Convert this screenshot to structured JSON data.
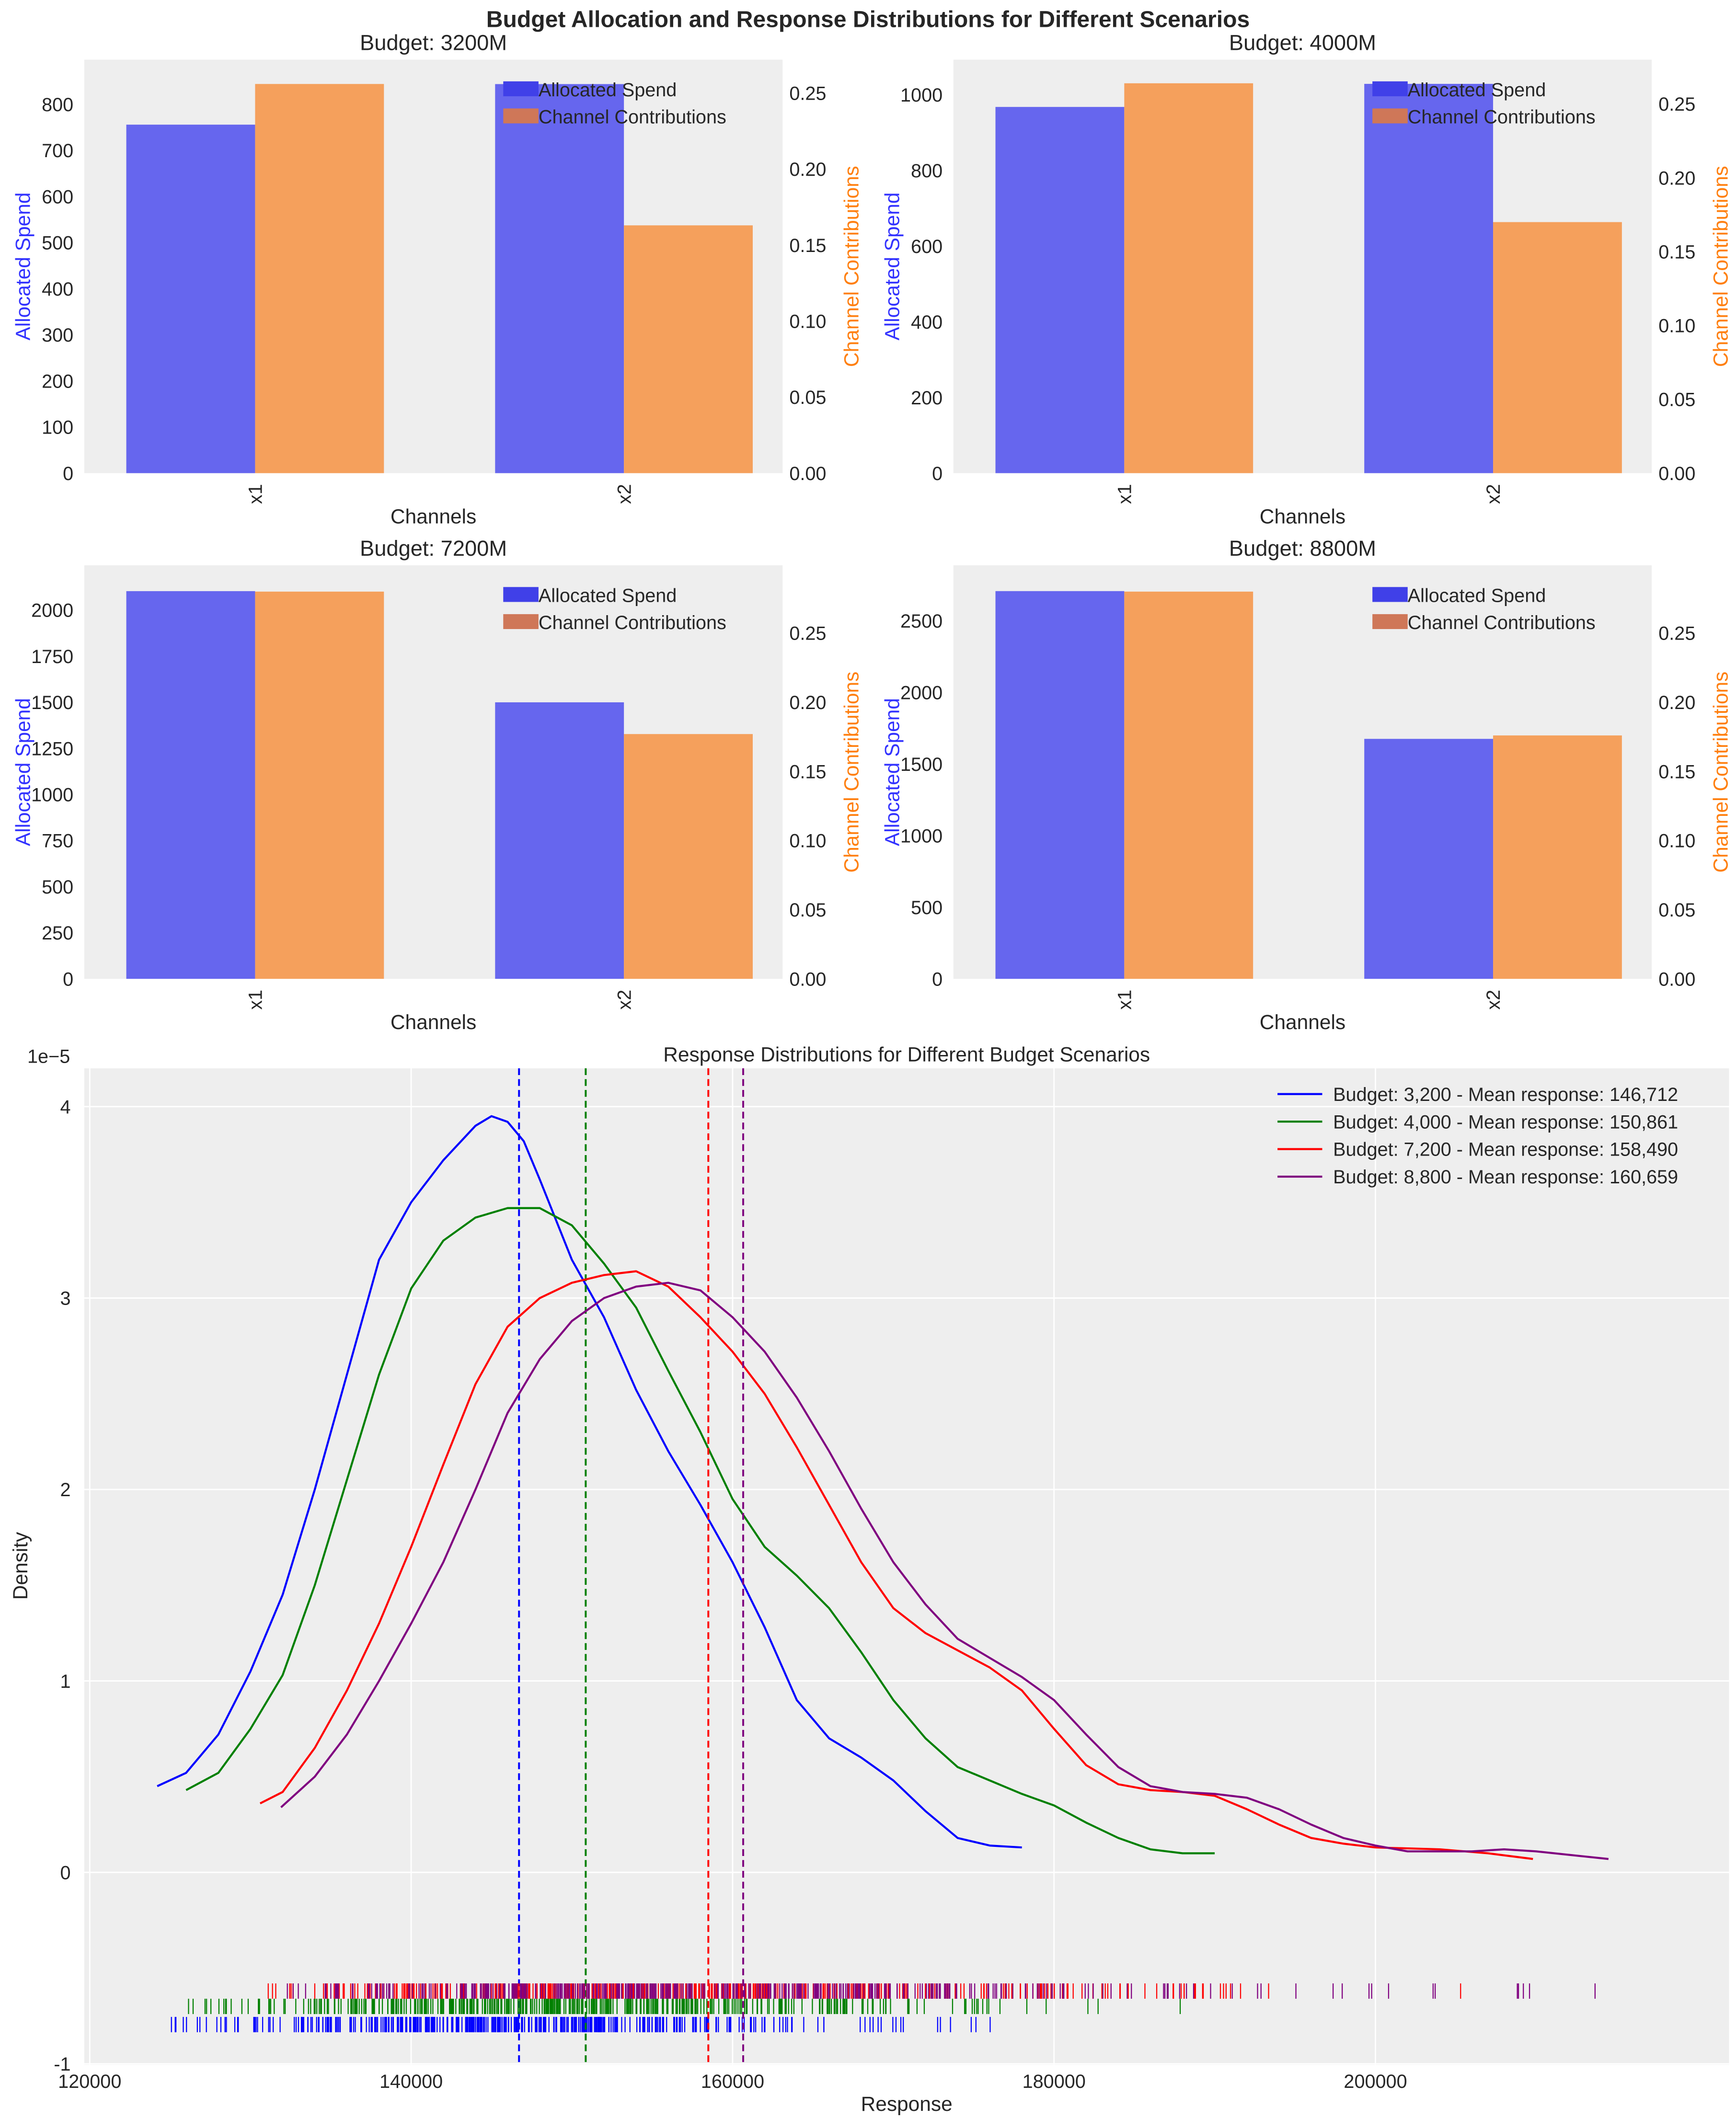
{
  "figure": {
    "title": "Budget Allocation and Response Distributions for Different Scenarios",
    "background": "#eeeeee",
    "spend_color": "#6666ee",
    "contribution_color": "#f5a05c",
    "spend_label_color": "#3333ff",
    "contribution_label_color": "#ff7f0e"
  },
  "chart_data": [
    {
      "type": "bar",
      "title": "Budget: 3200M",
      "xlabel": "Channels",
      "ylabel": "Allocated Spend",
      "ylabel_right": "Channel Contributions",
      "categories": [
        "x1",
        "x2"
      ],
      "series": [
        {
          "name": "Allocated Spend",
          "axis": "left",
          "values": [
            756,
            844
          ]
        },
        {
          "name": "Channel Contributions",
          "axis": "right",
          "values": [
            0.256,
            0.163
          ]
        }
      ],
      "ylim": [
        0,
        897
      ],
      "ylim_right": [
        0,
        0.272
      ],
      "yticks": [
        "0",
        "100",
        "200",
        "300",
        "400",
        "500",
        "600",
        "700",
        "800"
      ],
      "yticks_right": [
        "0.00",
        "0.05",
        "0.10",
        "0.15",
        "0.20",
        "0.25"
      ],
      "legend": "top-right",
      "grid": false
    },
    {
      "type": "bar",
      "title": "Budget: 4000M",
      "xlabel": "Channels",
      "ylabel": "Allocated Spend",
      "ylabel_right": "Channel Contributions",
      "categories": [
        "x1",
        "x2"
      ],
      "series": [
        {
          "name": "Allocated Spend",
          "axis": "left",
          "values": [
            968,
            1029
          ]
        },
        {
          "name": "Channel Contributions",
          "axis": "right",
          "values": [
            0.264,
            0.17
          ]
        }
      ],
      "ylim": [
        0,
        1093
      ],
      "ylim_right": [
        0,
        0.28
      ],
      "yticks": [
        "0",
        "200",
        "400",
        "600",
        "800",
        "1000"
      ],
      "yticks_right": [
        "0.00",
        "0.05",
        "0.10",
        "0.15",
        "0.20",
        "0.25"
      ],
      "legend": "top-right",
      "grid": false
    },
    {
      "type": "bar",
      "title": "Budget: 7200M",
      "xlabel": "Channels",
      "ylabel": "Allocated Spend",
      "ylabel_right": "Channel Contributions",
      "categories": [
        "x1",
        "x2"
      ],
      "series": [
        {
          "name": "Allocated Spend",
          "axis": "left",
          "values": [
            2103,
            1500
          ]
        },
        {
          "name": "Channel Contributions",
          "axis": "right",
          "values": [
            0.28,
            0.177
          ]
        }
      ],
      "ylim": [
        0,
        2243
      ],
      "ylim_right": [
        0,
        0.299
      ],
      "yticks": [
        "0",
        "250",
        "500",
        "750",
        "1000",
        "1250",
        "1500",
        "1750",
        "2000"
      ],
      "yticks_right": [
        "0.00",
        "0.05",
        "0.10",
        "0.15",
        "0.20",
        "0.25"
      ],
      "legend": "top-right",
      "grid": false
    },
    {
      "type": "bar",
      "title": "Budget: 8800M",
      "xlabel": "Channels",
      "ylabel": "Allocated Spend",
      "ylabel_right": "Channel Contributions",
      "categories": [
        "x1",
        "x2"
      ],
      "series": [
        {
          "name": "Allocated Spend",
          "axis": "left",
          "values": [
            2708,
            1676
          ]
        },
        {
          "name": "Channel Contributions",
          "axis": "right",
          "values": [
            0.28,
            0.176
          ]
        }
      ],
      "ylim": [
        0,
        2888
      ],
      "ylim_right": [
        0,
        0.299
      ],
      "yticks": [
        "0",
        "500",
        "1000",
        "1500",
        "2000",
        "2500"
      ],
      "yticks_right": [
        "0.00",
        "0.05",
        "0.10",
        "0.15",
        "0.20",
        "0.25"
      ],
      "legend": "top-right",
      "grid": false
    },
    {
      "type": "line",
      "title": "Response Distributions for Different Budget Scenarios",
      "xlabel": "Response",
      "ylabel": "Density",
      "y_scale_label": "1e−5",
      "xlim": [
        119660,
        222000
      ],
      "ylim": [
        -1.005,
        4.2
      ],
      "xticks": [
        120000,
        140000,
        160000,
        180000,
        200000
      ],
      "yticks": [
        -1,
        0,
        1,
        2,
        3,
        4
      ],
      "grid": true,
      "legend": "top-right",
      "series": [
        {
          "name": "Budget: 3,200 - Mean response: 146,712",
          "color": "#0000ff",
          "mean": 146712,
          "rug_y": [
            -0.835,
            -0.755
          ],
          "points": [
            [
              124200,
              0.45
            ],
            [
              126000,
              0.52
            ],
            [
              128000,
              0.72
            ],
            [
              130000,
              1.05
            ],
            [
              132000,
              1.45
            ],
            [
              134000,
              2.0
            ],
            [
              136000,
              2.6
            ],
            [
              138000,
              3.2
            ],
            [
              140000,
              3.5
            ],
            [
              142000,
              3.72
            ],
            [
              144000,
              3.9
            ],
            [
              145000,
              3.95
            ],
            [
              146000,
              3.92
            ],
            [
              147000,
              3.82
            ],
            [
              148000,
              3.62
            ],
            [
              150000,
              3.2
            ],
            [
              152000,
              2.9
            ],
            [
              154000,
              2.52
            ],
            [
              156000,
              2.2
            ],
            [
              158000,
              1.92
            ],
            [
              160000,
              1.62
            ],
            [
              162000,
              1.28
            ],
            [
              164000,
              0.9
            ],
            [
              166000,
              0.7
            ],
            [
              168000,
              0.6
            ],
            [
              170000,
              0.48
            ],
            [
              172000,
              0.32
            ],
            [
              174000,
              0.18
            ],
            [
              176000,
              0.14
            ],
            [
              178000,
              0.13
            ]
          ]
        },
        {
          "name": "Budget: 4,000 - Mean response: 150,861",
          "color": "#008000",
          "mean": 150861,
          "rug_y": [
            -0.74,
            -0.66
          ],
          "points": [
            [
              126000,
              0.43
            ],
            [
              128000,
              0.52
            ],
            [
              130000,
              0.75
            ],
            [
              132000,
              1.03
            ],
            [
              134000,
              1.5
            ],
            [
              136000,
              2.05
            ],
            [
              138000,
              2.6
            ],
            [
              140000,
              3.05
            ],
            [
              142000,
              3.3
            ],
            [
              144000,
              3.42
            ],
            [
              146000,
              3.47
            ],
            [
              148000,
              3.47
            ],
            [
              150000,
              3.38
            ],
            [
              152000,
              3.18
            ],
            [
              154000,
              2.95
            ],
            [
              156000,
              2.62
            ],
            [
              158000,
              2.3
            ],
            [
              160000,
              1.95
            ],
            [
              162000,
              1.7
            ],
            [
              164000,
              1.55
            ],
            [
              166000,
              1.38
            ],
            [
              168000,
              1.15
            ],
            [
              170000,
              0.9
            ],
            [
              172000,
              0.7
            ],
            [
              174000,
              0.55
            ],
            [
              176000,
              0.48
            ],
            [
              178000,
              0.41
            ],
            [
              180000,
              0.35
            ],
            [
              182000,
              0.26
            ],
            [
              184000,
              0.18
            ],
            [
              186000,
              0.12
            ],
            [
              188000,
              0.1
            ],
            [
              190000,
              0.1
            ]
          ]
        },
        {
          "name": "Budget: 7,200 - Mean response: 158,490",
          "color": "#ff0000",
          "mean": 158490,
          "rug_y": [
            -0.66,
            -0.58
          ],
          "points": [
            [
              130600,
              0.36
            ],
            [
              132000,
              0.42
            ],
            [
              134000,
              0.65
            ],
            [
              136000,
              0.95
            ],
            [
              138000,
              1.3
            ],
            [
              140000,
              1.7
            ],
            [
              142000,
              2.13
            ],
            [
              144000,
              2.55
            ],
            [
              146000,
              2.85
            ],
            [
              148000,
              3.0
            ],
            [
              150000,
              3.08
            ],
            [
              152000,
              3.12
            ],
            [
              154000,
              3.14
            ],
            [
              156000,
              3.06
            ],
            [
              158000,
              2.9
            ],
            [
              160000,
              2.72
            ],
            [
              162000,
              2.5
            ],
            [
              164000,
              2.22
            ],
            [
              166000,
              1.92
            ],
            [
              168000,
              1.62
            ],
            [
              170000,
              1.38
            ],
            [
              172000,
              1.25
            ],
            [
              174000,
              1.16
            ],
            [
              176000,
              1.07
            ],
            [
              178000,
              0.95
            ],
            [
              180000,
              0.75
            ],
            [
              182000,
              0.56
            ],
            [
              184000,
              0.46
            ],
            [
              186000,
              0.43
            ],
            [
              188000,
              0.42
            ],
            [
              190000,
              0.4
            ],
            [
              192000,
              0.33
            ],
            [
              194000,
              0.25
            ],
            [
              196000,
              0.18
            ],
            [
              198000,
              0.15
            ],
            [
              200000,
              0.13
            ],
            [
              204000,
              0.12
            ],
            [
              207000,
              0.1
            ],
            [
              209800,
              0.07
            ]
          ]
        },
        {
          "name": "Budget: 8,800 - Mean response: 160,659",
          "color": "#800080",
          "mean": 160659,
          "rug_y": [
            -0.66,
            -0.58
          ],
          "points": [
            [
              131900,
              0.34
            ],
            [
              134000,
              0.5
            ],
            [
              136000,
              0.72
            ],
            [
              138000,
              1.0
            ],
            [
              140000,
              1.3
            ],
            [
              142000,
              1.62
            ],
            [
              144000,
              2.0
            ],
            [
              146000,
              2.4
            ],
            [
              148000,
              2.68
            ],
            [
              150000,
              2.88
            ],
            [
              152000,
              3.0
            ],
            [
              154000,
              3.06
            ],
            [
              156000,
              3.08
            ],
            [
              158000,
              3.04
            ],
            [
              160000,
              2.9
            ],
            [
              162000,
              2.72
            ],
            [
              164000,
              2.48
            ],
            [
              166000,
              2.2
            ],
            [
              168000,
              1.9
            ],
            [
              170000,
              1.62
            ],
            [
              172000,
              1.4
            ],
            [
              174000,
              1.22
            ],
            [
              176000,
              1.12
            ],
            [
              178000,
              1.02
            ],
            [
              180000,
              0.9
            ],
            [
              182000,
              0.72
            ],
            [
              184000,
              0.55
            ],
            [
              186000,
              0.45
            ],
            [
              188000,
              0.42
            ],
            [
              190000,
              0.41
            ],
            [
              192000,
              0.39
            ],
            [
              194000,
              0.33
            ],
            [
              196000,
              0.25
            ],
            [
              198000,
              0.18
            ],
            [
              200000,
              0.14
            ],
            [
              202000,
              0.11
            ],
            [
              206000,
              0.11
            ],
            [
              208000,
              0.12
            ],
            [
              210000,
              0.11
            ],
            [
              214500,
              0.07
            ]
          ]
        }
      ]
    }
  ]
}
